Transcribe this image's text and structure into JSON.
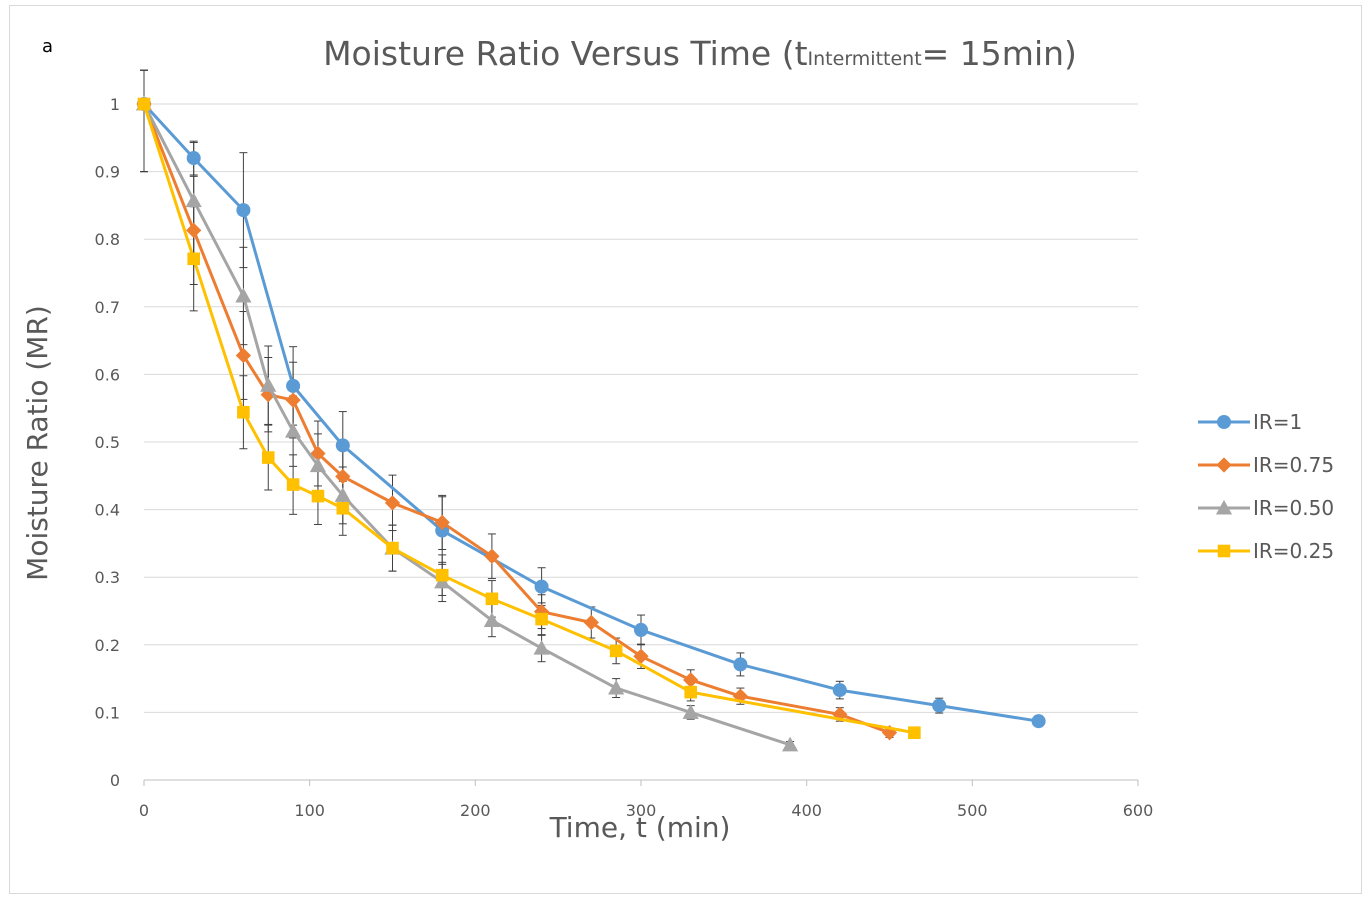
{
  "panel_label": "a",
  "chart_data": {
    "type": "line",
    "title_main": "Moisture Ratio Versus Time (t",
    "title_sub": "Intermittent",
    "title_tail": "= 15min)",
    "xlabel": "Time, t (min)",
    "ylabel": "Moisture Ratio (MR)",
    "xlim": [
      0,
      600
    ],
    "ylim": [
      0,
      1
    ],
    "xticks": [
      "0",
      "100",
      "200",
      "300",
      "400",
      "500",
      "600"
    ],
    "yticks": [
      "0",
      "0.1",
      "0.2",
      "0.3",
      "0.4",
      "0.5",
      "0.6",
      "0.7",
      "0.8",
      "0.9",
      "1"
    ],
    "grid": "horizontal",
    "legend_position": "right",
    "error_bar_color": "#404040",
    "series": [
      {
        "name": "IR=1",
        "color": "#5B9BD5",
        "marker": "circle",
        "x": [
          0,
          30,
          60,
          90,
          120,
          180,
          240,
          300,
          360,
          420,
          480,
          540
        ],
        "y": [
          1.0,
          0.92,
          0.843,
          0.583,
          0.495,
          0.369,
          0.286,
          0.222,
          0.171,
          0.133,
          0.11,
          0.087
        ],
        "err": [
          0.1,
          0.025,
          0.085,
          0.058,
          0.05,
          0.05,
          0.028,
          0.022,
          0.017,
          0.013,
          0.011,
          0.008
        ]
      },
      {
        "name": "IR=0.75",
        "color": "#ED7D31",
        "marker": "diamond",
        "x": [
          0,
          30,
          60,
          75,
          90,
          105,
          120,
          150,
          180,
          210,
          240,
          270,
          300,
          330,
          360,
          420,
          450
        ],
        "y": [
          1.0,
          0.813,
          0.628,
          0.57,
          0.562,
          0.483,
          0.449,
          0.41,
          0.381,
          0.331,
          0.249,
          0.233,
          0.183,
          0.148,
          0.124,
          0.097,
          0.07
        ],
        "err": [
          0.1,
          0.08,
          0.065,
          0.055,
          0.056,
          0.048,
          0.045,
          0.041,
          0.04,
          0.033,
          0.025,
          0.023,
          0.018,
          0.015,
          0.012,
          0.01,
          0.007
        ]
      },
      {
        "name": "IR=0.50",
        "color": "#A5A5A5",
        "marker": "triangle",
        "x": [
          0,
          30,
          60,
          75,
          90,
          105,
          120,
          150,
          180,
          210,
          240,
          285,
          330,
          390
        ],
        "y": [
          1.0,
          0.857,
          0.716,
          0.584,
          0.516,
          0.465,
          0.421,
          0.343,
          0.293,
          0.236,
          0.195,
          0.136,
          0.1,
          0.052
        ],
        "err": [
          0.1,
          0.086,
          0.072,
          0.058,
          0.052,
          0.047,
          0.042,
          0.034,
          0.029,
          0.024,
          0.02,
          0.014,
          0.01,
          0.005
        ]
      },
      {
        "name": "IR=0.25",
        "color": "#FFC000",
        "marker": "square",
        "x": [
          0,
          30,
          60,
          75,
          90,
          105,
          120,
          150,
          180,
          210,
          240,
          285,
          330,
          465
        ],
        "y": [
          1.0,
          0.771,
          0.544,
          0.477,
          0.437,
          0.42,
          0.402,
          0.343,
          0.303,
          0.268,
          0.238,
          0.191,
          0.13,
          0.07
        ],
        "err": [
          0.1,
          0.077,
          0.054,
          0.048,
          0.044,
          0.042,
          0.04,
          0.034,
          0.03,
          0.027,
          0.024,
          0.019,
          0.013,
          0.007
        ]
      }
    ]
  }
}
